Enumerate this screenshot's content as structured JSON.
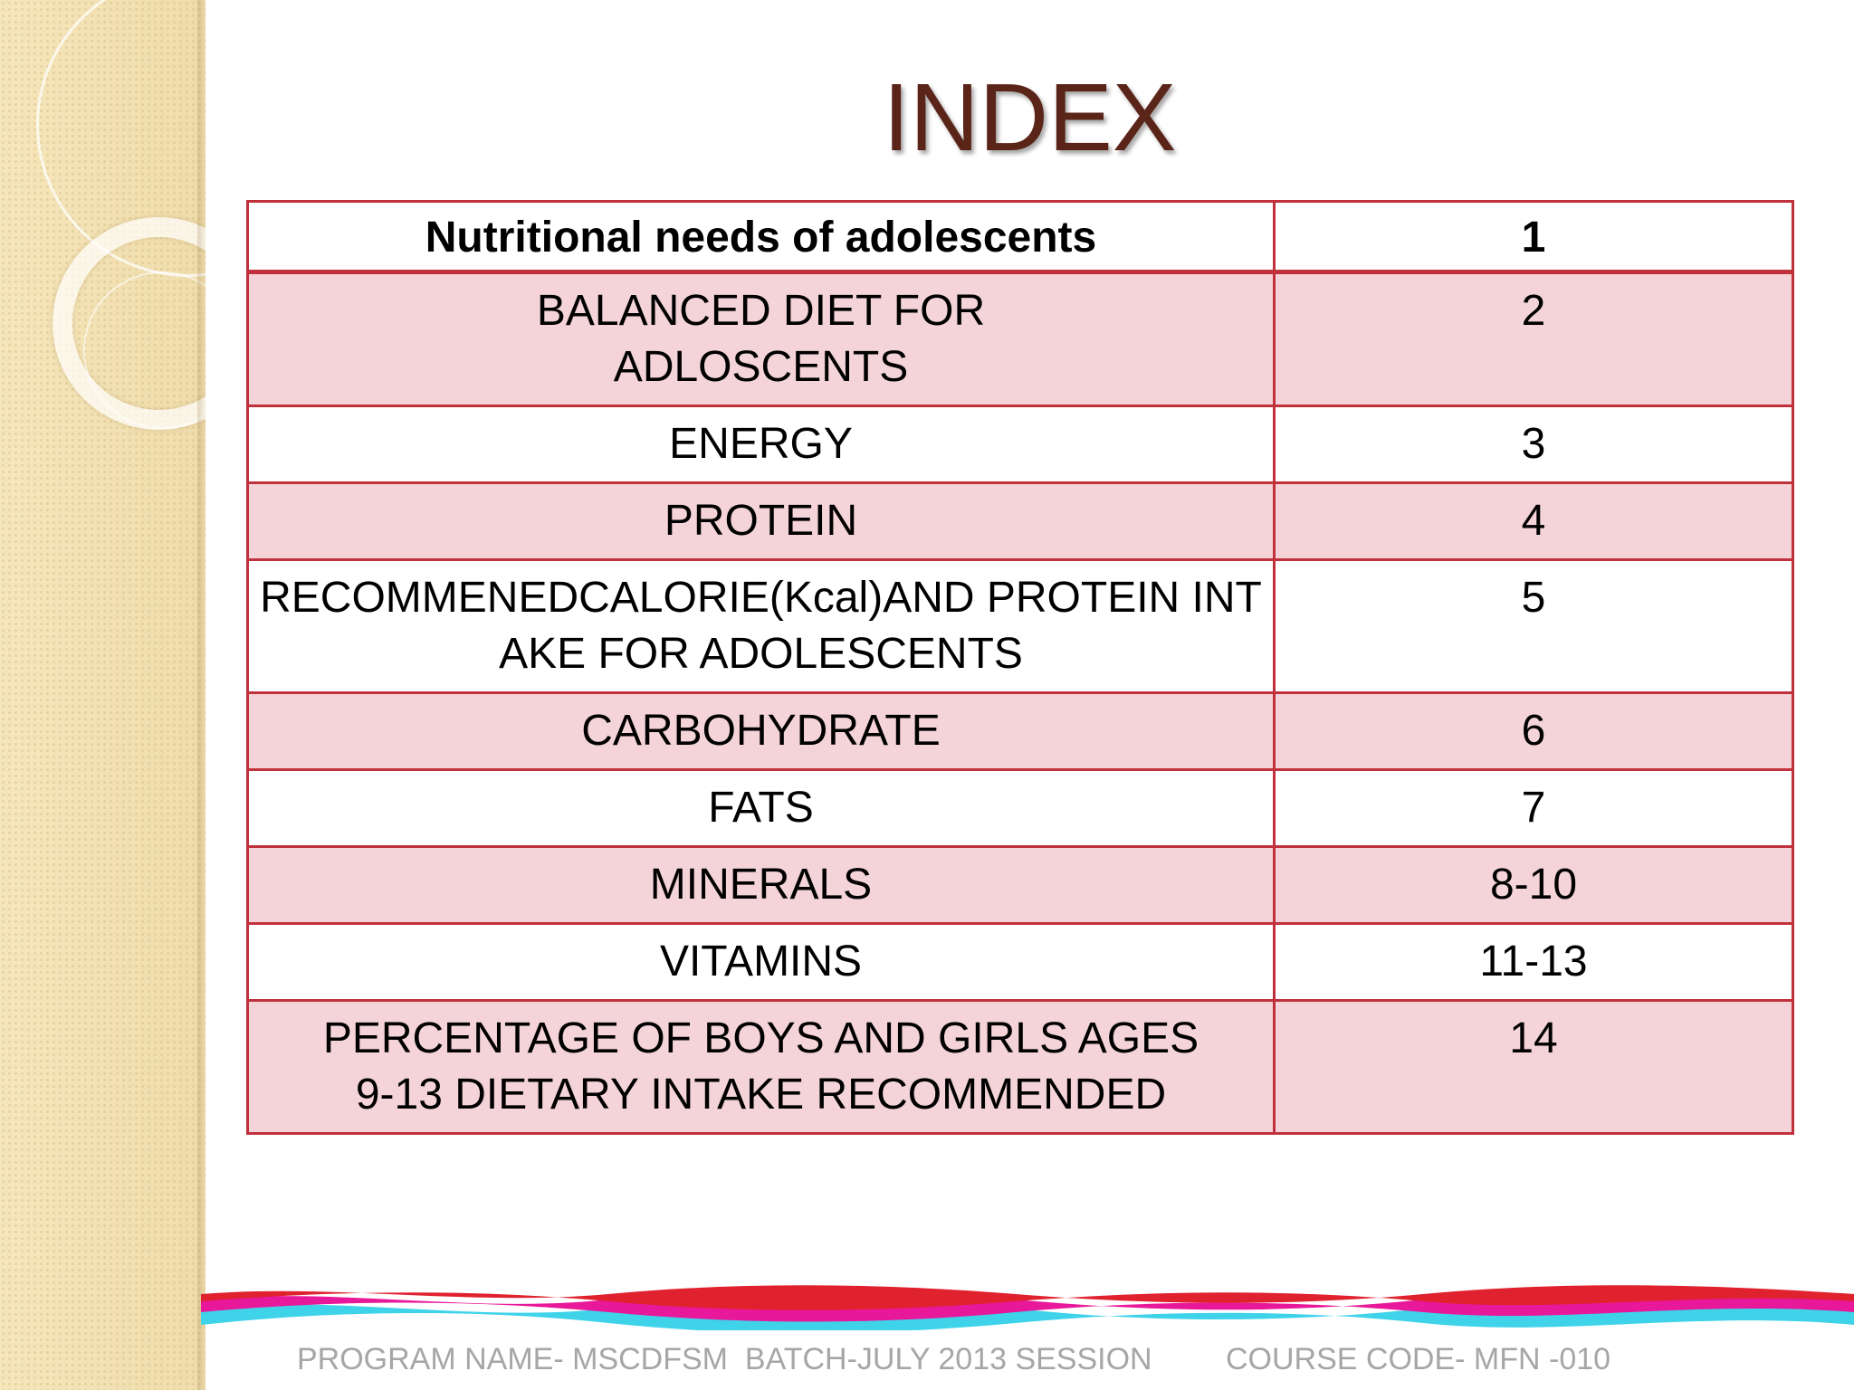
{
  "slide": {
    "title": "INDEX",
    "header_row": {
      "topic": "Nutritional needs of adolescents",
      "page": "1"
    },
    "rows": [
      {
        "topic": "BALANCED DIET FOR ADLOSCENTS",
        "page": "2"
      },
      {
        "topic": "ENERGY",
        "page": "3"
      },
      {
        "topic": "PROTEIN",
        "page": "4"
      },
      {
        "topic": "RECOMMENEDCALORIE(Kcal)AND PROTEIN INTAKE FOR ADOLESCENTS",
        "page": "5"
      },
      {
        "topic": "CARBOHYDRATE",
        "page": "6"
      },
      {
        "topic": "FATS",
        "page": "7"
      },
      {
        "topic": "MINERALS",
        "page": "8-10"
      },
      {
        "topic": "VITAMINS",
        "page": "11-13"
      },
      {
        "topic": "PERCENTAGE OF BOYS AND GIRLS AGES 9-13 DIETARY INTAKE RECOMMENDED",
        "page": "14"
      }
    ],
    "footer": {
      "program": "PROGRAM NAME- MSCDFSM  BATCH-JULY 2013 SESSION",
      "course": "COURSE CODE- MFN -010"
    }
  },
  "colors": {
    "title": "#5a2418",
    "border": "#c0313c",
    "row_tint": "#f4d4d8",
    "sidebar": "#f3e2b3"
  }
}
